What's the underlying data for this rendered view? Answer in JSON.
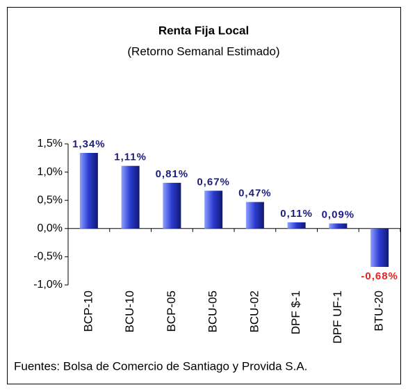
{
  "chart_data": {
    "type": "bar",
    "title": "Renta Fija Local",
    "subtitle": "(Retorno Semanal Estimado)",
    "footnote": "Fuentes: Bolsa de Comercio de Santiago y Provida S.A.",
    "categories": [
      "BCP-10",
      "BCU-10",
      "BCP-05",
      "BCU-05",
      "BCU-02",
      "DPF $-1",
      "DPF UF-1",
      "BTU-20"
    ],
    "values": [
      1.34,
      1.11,
      0.81,
      0.67,
      0.47,
      0.11,
      0.09,
      -0.68
    ],
    "value_labels": [
      "1,34%",
      "1,11%",
      "0,81%",
      "0,67%",
      "0,47%",
      "0,11%",
      "0,09%",
      "-0,68%"
    ],
    "color": "#2a3ad0",
    "label_color": "#1c1c80",
    "negative_label_color": "#e8211f",
    "ylim": [
      -1,
      1.5
    ],
    "yticks": [
      {
        "value": -1,
        "label": "-1,0%"
      },
      {
        "value": -0.5,
        "label": "-0,5%"
      },
      {
        "value": 0,
        "label": "0,0%"
      },
      {
        "value": 0.5,
        "label": "0,5%"
      },
      {
        "value": 1,
        "label": "1,0%"
      },
      {
        "value": 1.5,
        "label": "1,5%"
      }
    ],
    "grid": false
  }
}
